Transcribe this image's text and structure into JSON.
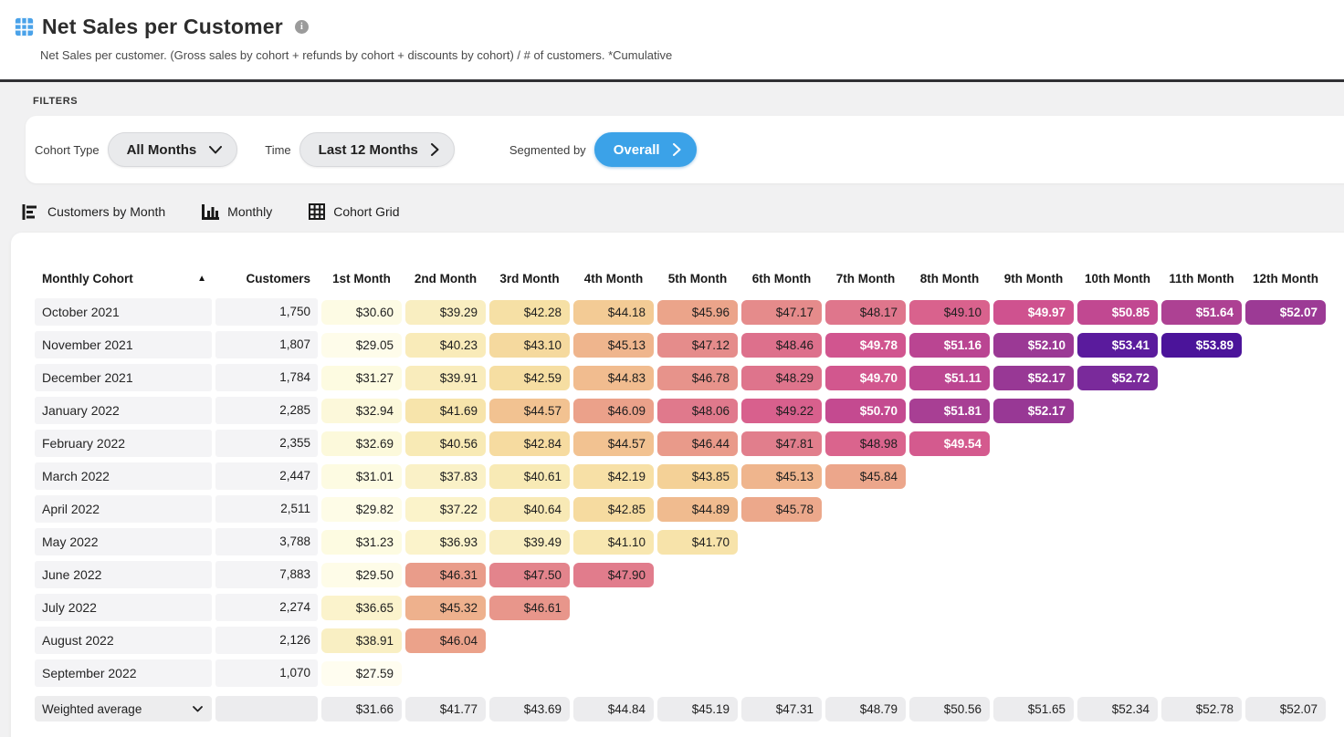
{
  "header": {
    "title": "Net Sales per Customer",
    "subtitle": "Net Sales per customer. (Gross sales by cohort + refunds by cohort + discounts by cohort) / # of customers. *Cumulative"
  },
  "filters": {
    "section_label": "FILTERS",
    "cohort_type_label": "Cohort Type",
    "cohort_type_value": "All Months",
    "time_label": "Time",
    "time_value": "Last 12 Months",
    "segmented_label": "Segmented by",
    "segmented_value": "Overall",
    "accent_blue": "#3ba2e8"
  },
  "tabs": [
    {
      "label": "Customers by Month",
      "icon": "bar-chart-horizontal-icon"
    },
    {
      "label": "Monthly",
      "icon": "bar-chart-vertical-icon"
    },
    {
      "label": "Cohort Grid",
      "icon": "grid-icon"
    }
  ],
  "table": {
    "cohort_header": "Monthly Cohort",
    "sort_indicator": "▲",
    "customers_header": "Customers",
    "month_headers": [
      "1st Month",
      "2nd Month",
      "3rd Month",
      "4th Month",
      "5th Month",
      "6th Month",
      "7th Month",
      "8th Month",
      "9th Month",
      "10th Month",
      "11th Month",
      "12th Month"
    ],
    "currency_prefix": "$",
    "rows": [
      {
        "cohort": "October 2021",
        "customers": "1,750",
        "values": [
          30.6,
          39.29,
          42.28,
          44.18,
          45.96,
          47.17,
          48.17,
          49.1,
          49.97,
          50.85,
          51.64,
          52.07
        ]
      },
      {
        "cohort": "November 2021",
        "customers": "1,807",
        "values": [
          29.05,
          40.23,
          43.1,
          45.13,
          47.12,
          48.46,
          49.78,
          51.16,
          52.1,
          53.41,
          53.89
        ]
      },
      {
        "cohort": "December 2021",
        "customers": "1,784",
        "values": [
          31.27,
          39.91,
          42.59,
          44.83,
          46.78,
          48.29,
          49.7,
          51.11,
          52.17,
          52.72
        ]
      },
      {
        "cohort": "January 2022",
        "customers": "2,285",
        "values": [
          32.94,
          41.69,
          44.57,
          46.09,
          48.06,
          49.22,
          50.7,
          51.81,
          52.17
        ]
      },
      {
        "cohort": "February 2022",
        "customers": "2,355",
        "values": [
          32.69,
          40.56,
          42.84,
          44.57,
          46.44,
          47.81,
          48.98,
          49.54
        ]
      },
      {
        "cohort": "March 2022",
        "customers": "2,447",
        "values": [
          31.01,
          37.83,
          40.61,
          42.19,
          43.85,
          45.13,
          45.84
        ]
      },
      {
        "cohort": "April 2022",
        "customers": "2,511",
        "values": [
          29.82,
          37.22,
          40.64,
          42.85,
          44.89,
          45.78
        ]
      },
      {
        "cohort": "May 2022",
        "customers": "3,788",
        "values": [
          31.23,
          36.93,
          39.49,
          41.1,
          41.7
        ]
      },
      {
        "cohort": "June 2022",
        "customers": "7,883",
        "values": [
          29.5,
          46.31,
          47.5,
          47.9
        ]
      },
      {
        "cohort": "July 2022",
        "customers": "2,274",
        "values": [
          36.65,
          45.32,
          46.61
        ]
      },
      {
        "cohort": "August 2022",
        "customers": "2,126",
        "values": [
          38.91,
          46.04
        ]
      },
      {
        "cohort": "September 2022",
        "customers": "1,070",
        "values": [
          27.59
        ]
      }
    ],
    "footer": {
      "label": "Weighted average",
      "values": [
        31.66,
        41.77,
        43.69,
        44.84,
        45.19,
        47.31,
        48.79,
        50.56,
        51.65,
        52.34,
        52.78,
        52.07
      ]
    }
  },
  "heatmap": {
    "stops": [
      [
        27.5,
        "#fffdf0"
      ],
      [
        31.0,
        "#fdfbe2"
      ],
      [
        34.0,
        "#fcf7d6"
      ],
      [
        37.0,
        "#fbf3cb"
      ],
      [
        39.5,
        "#f9eec0"
      ],
      [
        41.0,
        "#f8e8b1"
      ],
      [
        42.7,
        "#f6dda1"
      ],
      [
        44.0,
        "#f4cf96"
      ],
      [
        45.0,
        "#f0b88e"
      ],
      [
        46.0,
        "#eba38a"
      ],
      [
        47.0,
        "#e68e8b"
      ],
      [
        48.0,
        "#e07a8c"
      ],
      [
        49.0,
        "#da648d"
      ],
      [
        50.0,
        "#cf518f"
      ],
      [
        51.0,
        "#bf4791"
      ],
      [
        51.8,
        "#a83f94"
      ],
      [
        52.3,
        "#923596"
      ],
      [
        52.8,
        "#75289c"
      ],
      [
        53.4,
        "#5a1b9d"
      ],
      [
        53.9,
        "#4b149a"
      ]
    ],
    "white_text_threshold": 49.5,
    "dark_text_color": "#1e1e1e",
    "light_text_color": "#ffffff"
  }
}
